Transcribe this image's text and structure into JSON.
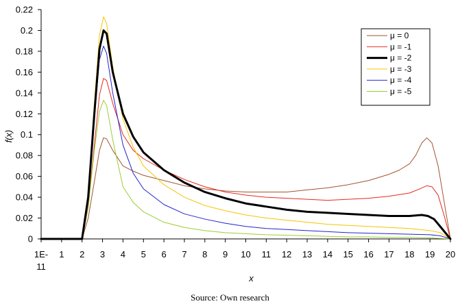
{
  "chart_data": {
    "type": "line",
    "xlabel": "x",
    "ylabel": "f(x)",
    "xlim": [
      0,
      20
    ],
    "ylim": [
      0,
      0.22
    ],
    "x_tick_labels": [
      "1E-",
      "1",
      "2",
      "3",
      "4",
      "5",
      "6",
      "7",
      "8",
      "9",
      "10",
      "11",
      "12",
      "13",
      "14",
      "15",
      "16",
      "17",
      "18",
      "19",
      "20"
    ],
    "x_tick_label_extra": "11",
    "y_ticks": [
      "0",
      "0.02",
      "0.04",
      "0.06",
      "0.08",
      "0.1",
      "0.12",
      "0.14",
      "0.16",
      "0.18",
      "0.2",
      "0.22"
    ],
    "legend_position": "top-right",
    "series": [
      {
        "name": "μ = 0",
        "color": "#a0522d",
        "width": 1,
        "points": [
          [
            0,
            0
          ],
          [
            2,
            0
          ],
          [
            2.3,
            0.02
          ],
          [
            2.6,
            0.055
          ],
          [
            2.85,
            0.085
          ],
          [
            3.05,
            0.097
          ],
          [
            3.2,
            0.096
          ],
          [
            3.5,
            0.085
          ],
          [
            4,
            0.07
          ],
          [
            4.5,
            0.065
          ],
          [
            5,
            0.061
          ],
          [
            6,
            0.056
          ],
          [
            7,
            0.051
          ],
          [
            8,
            0.048
          ],
          [
            9,
            0.046
          ],
          [
            10,
            0.045
          ],
          [
            11,
            0.045
          ],
          [
            12,
            0.045
          ],
          [
            13,
            0.047
          ],
          [
            14,
            0.049
          ],
          [
            15,
            0.052
          ],
          [
            16,
            0.056
          ],
          [
            17,
            0.062
          ],
          [
            17.5,
            0.066
          ],
          [
            18,
            0.072
          ],
          [
            18.3,
            0.08
          ],
          [
            18.6,
            0.092
          ],
          [
            18.85,
            0.097
          ],
          [
            19.1,
            0.092
          ],
          [
            19.4,
            0.07
          ],
          [
            19.7,
            0.035
          ],
          [
            20,
            0
          ]
        ]
      },
      {
        "name": "μ = -1",
        "color": "#e8261f",
        "width": 1,
        "points": [
          [
            0,
            0
          ],
          [
            2,
            0
          ],
          [
            2.3,
            0.03
          ],
          [
            2.6,
            0.09
          ],
          [
            2.85,
            0.138
          ],
          [
            3.05,
            0.154
          ],
          [
            3.2,
            0.152
          ],
          [
            3.5,
            0.13
          ],
          [
            4,
            0.1
          ],
          [
            4.5,
            0.085
          ],
          [
            5,
            0.077
          ],
          [
            6,
            0.066
          ],
          [
            7,
            0.057
          ],
          [
            8,
            0.05
          ],
          [
            9,
            0.045
          ],
          [
            10,
            0.042
          ],
          [
            11,
            0.04
          ],
          [
            12,
            0.039
          ],
          [
            13,
            0.038
          ],
          [
            14,
            0.037
          ],
          [
            15,
            0.038
          ],
          [
            16,
            0.039
          ],
          [
            17,
            0.041
          ],
          [
            18,
            0.044
          ],
          [
            18.5,
            0.048
          ],
          [
            18.85,
            0.051
          ],
          [
            19.1,
            0.05
          ],
          [
            19.4,
            0.042
          ],
          [
            19.7,
            0.022
          ],
          [
            20,
            0
          ]
        ]
      },
      {
        "name": "μ = -2",
        "color": "#000000",
        "width": 3,
        "points": [
          [
            0,
            0
          ],
          [
            2,
            0
          ],
          [
            2.3,
            0.04
          ],
          [
            2.6,
            0.12
          ],
          [
            2.85,
            0.182
          ],
          [
            3.05,
            0.2
          ],
          [
            3.2,
            0.197
          ],
          [
            3.5,
            0.16
          ],
          [
            4,
            0.12
          ],
          [
            4.5,
            0.098
          ],
          [
            5,
            0.083
          ],
          [
            6,
            0.066
          ],
          [
            7,
            0.054
          ],
          [
            8,
            0.045
          ],
          [
            9,
            0.039
          ],
          [
            10,
            0.034
          ],
          [
            11,
            0.031
          ],
          [
            12,
            0.028
          ],
          [
            13,
            0.026
          ],
          [
            14,
            0.025
          ],
          [
            15,
            0.024
          ],
          [
            16,
            0.023
          ],
          [
            17,
            0.022
          ],
          [
            18,
            0.022
          ],
          [
            18.6,
            0.023
          ],
          [
            18.9,
            0.022
          ],
          [
            19.2,
            0.019
          ],
          [
            19.5,
            0.012
          ],
          [
            20,
            0
          ]
        ]
      },
      {
        "name": "μ = -3",
        "color": "#f5c400",
        "width": 1,
        "points": [
          [
            0,
            0
          ],
          [
            2,
            0
          ],
          [
            2.3,
            0.045
          ],
          [
            2.6,
            0.13
          ],
          [
            2.85,
            0.195
          ],
          [
            3.05,
            0.213
          ],
          [
            3.2,
            0.207
          ],
          [
            3.5,
            0.165
          ],
          [
            4,
            0.115
          ],
          [
            4.5,
            0.088
          ],
          [
            5,
            0.07
          ],
          [
            6,
            0.052
          ],
          [
            7,
            0.04
          ],
          [
            8,
            0.032
          ],
          [
            9,
            0.027
          ],
          [
            10,
            0.023
          ],
          [
            11,
            0.02
          ],
          [
            12,
            0.018
          ],
          [
            13,
            0.016
          ],
          [
            14,
            0.014
          ],
          [
            15,
            0.013
          ],
          [
            16,
            0.012
          ],
          [
            17,
            0.011
          ],
          [
            18,
            0.01
          ],
          [
            19,
            0.008
          ],
          [
            19.5,
            0.006
          ],
          [
            20,
            0
          ]
        ]
      },
      {
        "name": "μ = -4",
        "color": "#2222cc",
        "width": 1,
        "points": [
          [
            0,
            0
          ],
          [
            2,
            0
          ],
          [
            2.3,
            0.04
          ],
          [
            2.6,
            0.115
          ],
          [
            2.85,
            0.172
          ],
          [
            3.05,
            0.185
          ],
          [
            3.2,
            0.178
          ],
          [
            3.5,
            0.14
          ],
          [
            4,
            0.09
          ],
          [
            4.5,
            0.063
          ],
          [
            5,
            0.048
          ],
          [
            6,
            0.033
          ],
          [
            7,
            0.024
          ],
          [
            8,
            0.019
          ],
          [
            9,
            0.015
          ],
          [
            10,
            0.012
          ],
          [
            11,
            0.01
          ],
          [
            12,
            0.009
          ],
          [
            13,
            0.008
          ],
          [
            14,
            0.007
          ],
          [
            15,
            0.006
          ],
          [
            16,
            0.0055
          ],
          [
            17,
            0.005
          ],
          [
            18,
            0.0045
          ],
          [
            19,
            0.004
          ],
          [
            19.5,
            0.003
          ],
          [
            20,
            0
          ]
        ]
      },
      {
        "name": "μ = -5",
        "color": "#9acd32",
        "width": 1,
        "points": [
          [
            0,
            0
          ],
          [
            2,
            0
          ],
          [
            2.3,
            0.03
          ],
          [
            2.6,
            0.085
          ],
          [
            2.85,
            0.122
          ],
          [
            3.05,
            0.133
          ],
          [
            3.2,
            0.128
          ],
          [
            3.5,
            0.095
          ],
          [
            4,
            0.05
          ],
          [
            4.5,
            0.035
          ],
          [
            5,
            0.026
          ],
          [
            6,
            0.016
          ],
          [
            7,
            0.011
          ],
          [
            8,
            0.008
          ],
          [
            9,
            0.006
          ],
          [
            10,
            0.005
          ],
          [
            11,
            0.004
          ],
          [
            12,
            0.0035
          ],
          [
            13,
            0.003
          ],
          [
            14,
            0.0025
          ],
          [
            15,
            0.002
          ],
          [
            16,
            0.002
          ],
          [
            17,
            0.0015
          ],
          [
            18,
            0.0015
          ],
          [
            19,
            0.001
          ],
          [
            20,
            0
          ]
        ]
      }
    ]
  },
  "source_text": "Source: Own research"
}
